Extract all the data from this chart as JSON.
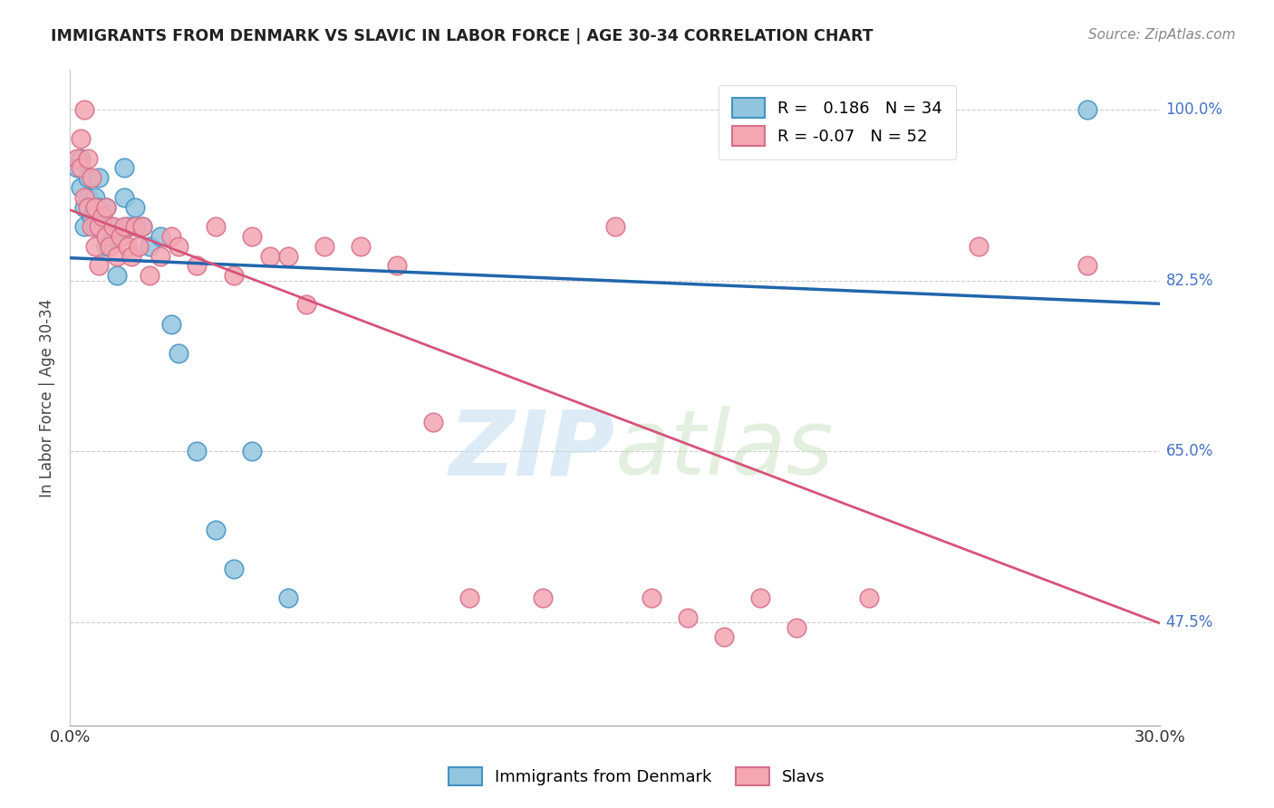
{
  "title": "IMMIGRANTS FROM DENMARK VS SLAVIC IN LABOR FORCE | AGE 30-34 CORRELATION CHART",
  "source": "Source: ZipAtlas.com",
  "ylabel": "In Labor Force | Age 30-34",
  "ytick_vals": [
    47.5,
    65.0,
    82.5,
    100.0
  ],
  "ytick_labels": [
    "47.5%",
    "65.0%",
    "82.5%",
    "100.0%"
  ],
  "xmin": 0.0,
  "xmax": 30.0,
  "ymin": 37.0,
  "ymax": 104.0,
  "denmark_R": 0.186,
  "denmark_N": 34,
  "slavic_R": -0.07,
  "slavic_N": 52,
  "denmark_color": "#92c5de",
  "slavic_color": "#f4a6b2",
  "denmark_edge_color": "#4393c3",
  "slavic_edge_color": "#d6708a",
  "denmark_line_color": "#2166ac",
  "slavic_line_color": "#d6547a",
  "denmark_x": [
    0.2,
    0.3,
    0.3,
    0.4,
    0.4,
    0.5,
    0.5,
    0.6,
    0.7,
    0.7,
    0.8,
    0.8,
    0.9,
    1.0,
    1.0,
    1.1,
    1.2,
    1.3,
    1.4,
    1.5,
    1.5,
    1.6,
    1.8,
    2.0,
    2.2,
    2.5,
    2.8,
    3.0,
    3.5,
    4.0,
    4.5,
    5.0,
    6.0,
    28.0
  ],
  "denmark_y": [
    94.0,
    95.0,
    92.0,
    90.0,
    88.0,
    93.0,
    91.0,
    89.0,
    91.0,
    88.0,
    90.0,
    93.0,
    88.0,
    90.0,
    86.0,
    88.0,
    87.0,
    83.0,
    87.0,
    91.0,
    94.0,
    88.0,
    90.0,
    88.0,
    86.0,
    87.0,
    78.0,
    75.0,
    65.0,
    57.0,
    53.0,
    65.0,
    50.0,
    100.0
  ],
  "slavic_x": [
    0.2,
    0.3,
    0.3,
    0.4,
    0.4,
    0.5,
    0.5,
    0.6,
    0.6,
    0.7,
    0.7,
    0.8,
    0.8,
    0.9,
    1.0,
    1.0,
    1.1,
    1.2,
    1.3,
    1.4,
    1.5,
    1.6,
    1.7,
    1.8,
    1.9,
    2.0,
    2.2,
    2.5,
    2.8,
    3.0,
    3.5,
    4.0,
    4.5,
    5.0,
    5.5,
    6.0,
    6.5,
    7.0,
    8.0,
    9.0,
    10.0,
    11.0,
    13.0,
    15.0,
    16.0,
    17.0,
    18.0,
    19.0,
    20.0,
    22.0,
    25.0,
    28.0
  ],
  "slavic_y": [
    95.0,
    97.0,
    94.0,
    91.0,
    100.0,
    95.0,
    90.0,
    93.0,
    88.0,
    90.0,
    86.0,
    88.0,
    84.0,
    89.0,
    90.0,
    87.0,
    86.0,
    88.0,
    85.0,
    87.0,
    88.0,
    86.0,
    85.0,
    88.0,
    86.0,
    88.0,
    83.0,
    85.0,
    87.0,
    86.0,
    84.0,
    88.0,
    83.0,
    87.0,
    85.0,
    85.0,
    80.0,
    86.0,
    86.0,
    84.0,
    68.0,
    50.0,
    50.0,
    88.0,
    50.0,
    48.0,
    46.0,
    50.0,
    47.0,
    50.0,
    86.0,
    84.0
  ],
  "watermark_zip": "ZIP",
  "watermark_atlas": "atlas"
}
